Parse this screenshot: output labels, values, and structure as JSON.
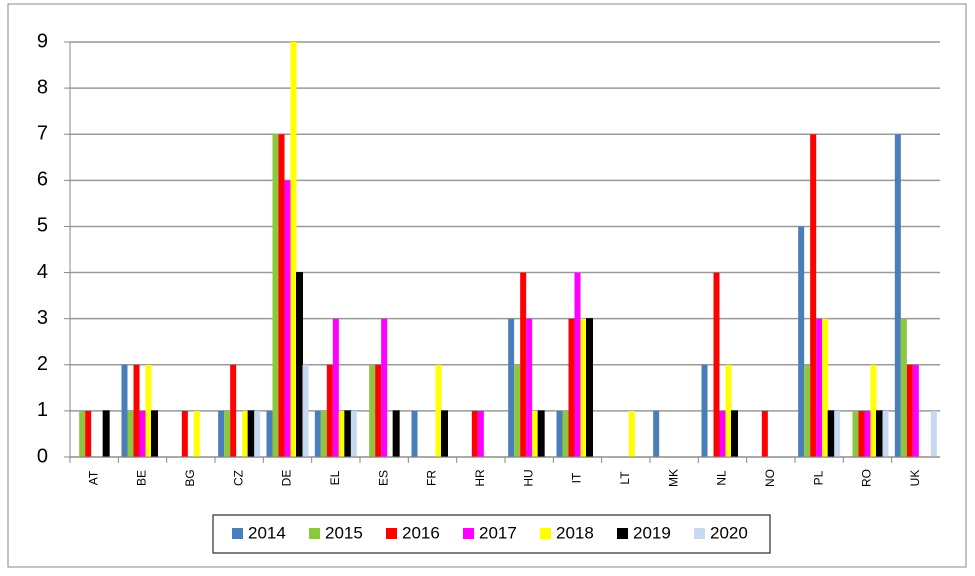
{
  "chart_data": {
    "type": "bar",
    "categories": [
      "AT",
      "BE",
      "BG",
      "CZ",
      "DE",
      "EL",
      "ES",
      "FR",
      "HR",
      "HU",
      "IT",
      "LT",
      "MK",
      "NL",
      "NO",
      "PL",
      "RO",
      "UK"
    ],
    "series": [
      {
        "name": "2014",
        "color": "#4a7ebb",
        "values": [
          0,
          2,
          0,
          1,
          1,
          1,
          0,
          1,
          0,
          3,
          1,
          0,
          1,
          2,
          0,
          5,
          0,
          7
        ]
      },
      {
        "name": "2015",
        "color": "#8dc63f",
        "values": [
          1,
          1,
          0,
          1,
          7,
          1,
          2,
          0,
          0,
          2,
          1,
          0,
          0,
          0,
          0,
          2,
          1,
          3
        ]
      },
      {
        "name": "2016",
        "color": "#ff0000",
        "values": [
          1,
          2,
          1,
          2,
          7,
          2,
          2,
          0,
          1,
          4,
          3,
          0,
          0,
          4,
          1,
          7,
          1,
          2
        ]
      },
      {
        "name": "2017",
        "color": "#ff00ff",
        "values": [
          0,
          1,
          0,
          0,
          6,
          3,
          3,
          0,
          1,
          3,
          4,
          0,
          0,
          1,
          0,
          3,
          1,
          2
        ]
      },
      {
        "name": "2018",
        "color": "#ffff00",
        "values": [
          0,
          2,
          1,
          1,
          9,
          1,
          0,
          2,
          0,
          1,
          3,
          1,
          0,
          2,
          0,
          3,
          2,
          0
        ]
      },
      {
        "name": "2019",
        "color": "#000000",
        "values": [
          1,
          1,
          0,
          1,
          4,
          1,
          1,
          1,
          0,
          1,
          3,
          0,
          0,
          1,
          0,
          1,
          1,
          0
        ]
      },
      {
        "name": "2020",
        "color": "#c6d9f1",
        "values": [
          0,
          0,
          0,
          1,
          2,
          1,
          0,
          0,
          0,
          0,
          0,
          0,
          0,
          0,
          0,
          1,
          1,
          1
        ]
      }
    ],
    "ylim": [
      0,
      9
    ],
    "yticks": [
      0,
      1,
      2,
      3,
      4,
      5,
      6,
      7,
      8,
      9
    ],
    "grid": true,
    "legend": "bottom"
  }
}
